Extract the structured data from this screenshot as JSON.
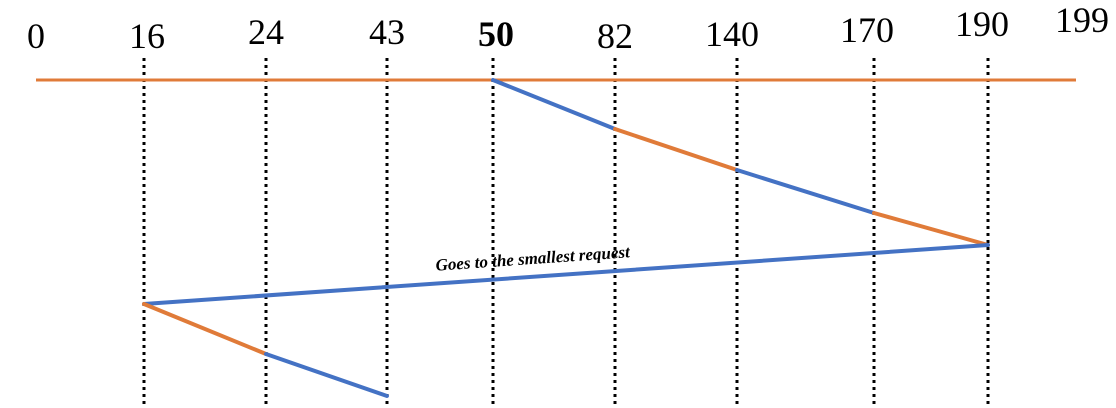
{
  "diagram": {
    "title": "",
    "track_positions": [
      "0",
      "16",
      "24",
      "43",
      "50",
      "82",
      "140",
      "170",
      "190",
      "199"
    ],
    "highlighted_position": "50",
    "seek_sequence": [
      50,
      82,
      140,
      170,
      190,
      16,
      24,
      43
    ],
    "annotation": "Goes to the smallest request",
    "colors": {
      "axis": "#e07b39",
      "segment_alt": "#e07b39",
      "segment_main": "#4472c4",
      "highlight_text": "#c0201f",
      "guide": "#000000"
    }
  }
}
